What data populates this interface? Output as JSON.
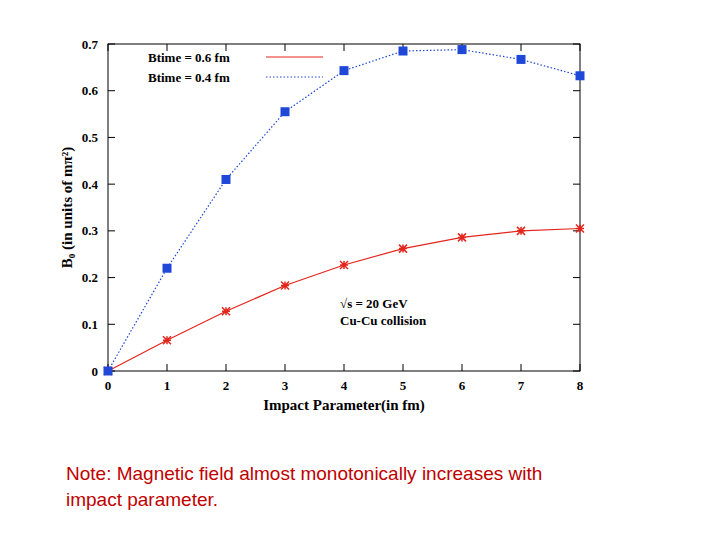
{
  "chart_data": {
    "type": "line",
    "x": [
      0,
      1,
      2,
      3,
      4,
      5,
      6,
      7,
      8
    ],
    "series": [
      {
        "name": "Btime = 0.6 fm",
        "color": "#e3261c",
        "marker": "star",
        "line_style": "solid",
        "values": [
          0,
          0.066,
          0.128,
          0.183,
          0.227,
          0.262,
          0.286,
          0.3,
          0.305
        ]
      },
      {
        "name": "Btime = 0.4 fm",
        "color": "#1f48d8",
        "marker": "square",
        "line_style": "dotted",
        "values": [
          0,
          0.22,
          0.41,
          0.555,
          0.643,
          0.685,
          0.688,
          0.667,
          0.632
        ]
      }
    ],
    "x_label": "Impact Parameter(in fm)",
    "y_label": "B₀ (in units of mπ²)",
    "annotations": [
      "√s = 20 GeV",
      "Cu-Cu collision"
    ],
    "xlim": [
      0,
      8
    ],
    "xticks": [
      0,
      1,
      2,
      3,
      4,
      5,
      6,
      7,
      8
    ],
    "ylim": [
      0,
      0.7
    ],
    "yticks": [
      0,
      0.1,
      0.2,
      0.3,
      0.4,
      0.5,
      0.6,
      0.7
    ],
    "grid": false,
    "legend": "top-left"
  },
  "note": {
    "lines": [
      "Note: Magnetic field almost monotonically increases with",
      "impact parameter."
    ]
  }
}
